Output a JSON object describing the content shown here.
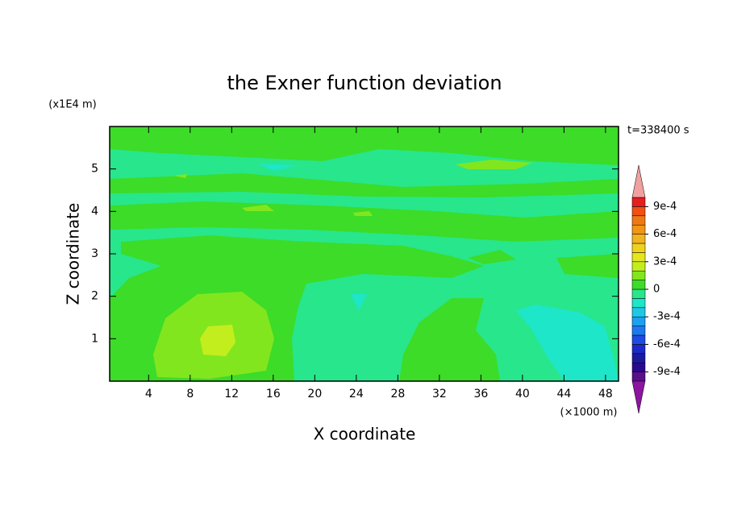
{
  "chart_data": {
    "type": "contour",
    "title": "the Exner function deviation",
    "xlabel": "X coordinate",
    "ylabel": "Z coordinate",
    "x_unit": "(×1000 m)",
    "y_unit": "(x1E4 m)",
    "time_label": "t=338400 s",
    "xlim": [
      0.25,
      49.25
    ],
    "ylim": [
      0,
      6
    ],
    "xticks": [
      4,
      8,
      12,
      16,
      20,
      24,
      28,
      32,
      36,
      40,
      44,
      48
    ],
    "yticks": [
      1,
      2,
      3,
      4,
      5
    ],
    "levels": [
      -0.001,
      -0.0009,
      -0.0008,
      -0.0007,
      -0.0006,
      -0.0005,
      -0.0004,
      -0.0003,
      -0.0002,
      -0.0001,
      0,
      0.0001,
      0.0002,
      0.0003,
      0.0004,
      0.0005,
      0.0006,
      0.0007,
      0.0008,
      0.0009,
      0.001
    ],
    "colors": [
      "#5a0f8c",
      "#2a0a8c",
      "#1a1aa0",
      "#1a2ac8",
      "#1e4be0",
      "#1e78f0",
      "#1ea0f0",
      "#1ec8e6",
      "#1ee6c8",
      "#28e68c",
      "#3cdc28",
      "#82e61e",
      "#c3ee1e",
      "#e6e61e",
      "#f0d21e",
      "#f0b41e",
      "#f09614",
      "#f07814",
      "#f05014",
      "#e61e1e"
    ],
    "under_color": "#8c14a0",
    "over_color": "#f0a0a0",
    "colorbar_ticks": [
      {
        "value": -0.0009,
        "label": "-9e-4"
      },
      {
        "value": -0.0006,
        "label": "-6e-4"
      },
      {
        "value": -0.0003,
        "label": "-3e-4"
      },
      0,
      {
        "value": 0.0003,
        "label": "3e-4"
      },
      {
        "value": 0.0006,
        "label": "6e-4"
      },
      {
        "value": 0.0009,
        "label": "9e-4"
      }
    ]
  }
}
